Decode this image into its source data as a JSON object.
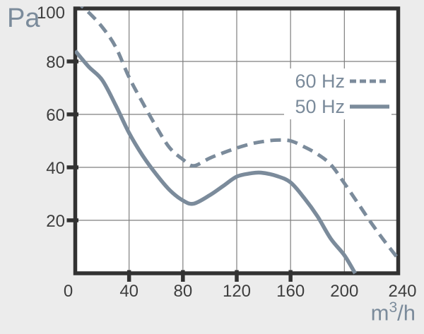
{
  "chart_data": {
    "type": "line",
    "title": "",
    "ylabel": "Pa",
    "x_unit": {
      "base": "m",
      "sup": "3",
      "denom": "/h"
    },
    "xlim": [
      0,
      240
    ],
    "ylim": [
      0,
      100
    ],
    "xticks": [
      0,
      40,
      80,
      120,
      160,
      200,
      240
    ],
    "yticks": [
      100,
      80,
      60,
      40,
      20
    ],
    "grid_x": [
      40,
      80,
      120,
      160,
      200
    ],
    "grid_y": [
      20,
      40,
      60,
      80
    ],
    "tickmarks_x": [
      40,
      80,
      120,
      160
    ],
    "tickmarks_y": [
      20,
      40,
      60,
      80
    ],
    "grid": "on",
    "legend_position": "top-right-inside",
    "colors": {
      "accent": "#7b8b9b",
      "frame": "#323232",
      "grid": "#7f7f7f",
      "tick_text": "#3e3e3e",
      "plot_bg": "#ffffff",
      "page_bg": "#ececec"
    },
    "series": [
      {
        "name": "60 Hz",
        "style": "dashed",
        "points": [
          [
            0,
            103
          ],
          [
            10,
            98.5
          ],
          [
            20,
            93
          ],
          [
            30,
            85.5
          ],
          [
            40,
            74
          ],
          [
            50,
            64.5
          ],
          [
            60,
            55.5
          ],
          [
            70,
            47.5
          ],
          [
            80,
            43
          ],
          [
            88,
            40.6
          ],
          [
            100,
            43.5
          ],
          [
            110,
            45.5
          ],
          [
            120,
            47.3
          ],
          [
            130,
            48.8
          ],
          [
            140,
            49.8
          ],
          [
            150,
            50.3
          ],
          [
            160,
            50
          ],
          [
            170,
            47.8
          ],
          [
            180,
            45
          ],
          [
            190,
            41
          ],
          [
            200,
            34
          ],
          [
            210,
            26.5
          ],
          [
            220,
            19
          ],
          [
            230,
            12
          ],
          [
            240,
            5.5
          ]
        ]
      },
      {
        "name": "50 Hz",
        "style": "solid",
        "points": [
          [
            0,
            84
          ],
          [
            10,
            78
          ],
          [
            20,
            73
          ],
          [
            30,
            63.5
          ],
          [
            40,
            53
          ],
          [
            50,
            44.5
          ],
          [
            60,
            37.5
          ],
          [
            70,
            31.5
          ],
          [
            80,
            27.5
          ],
          [
            88,
            26.3
          ],
          [
            100,
            29.5
          ],
          [
            110,
            33
          ],
          [
            120,
            36.5
          ],
          [
            130,
            37.7
          ],
          [
            138,
            38
          ],
          [
            150,
            36.7
          ],
          [
            160,
            34.3
          ],
          [
            170,
            28.5
          ],
          [
            180,
            21.5
          ],
          [
            190,
            13
          ],
          [
            200,
            6.8
          ],
          [
            208,
            0
          ]
        ]
      }
    ]
  }
}
